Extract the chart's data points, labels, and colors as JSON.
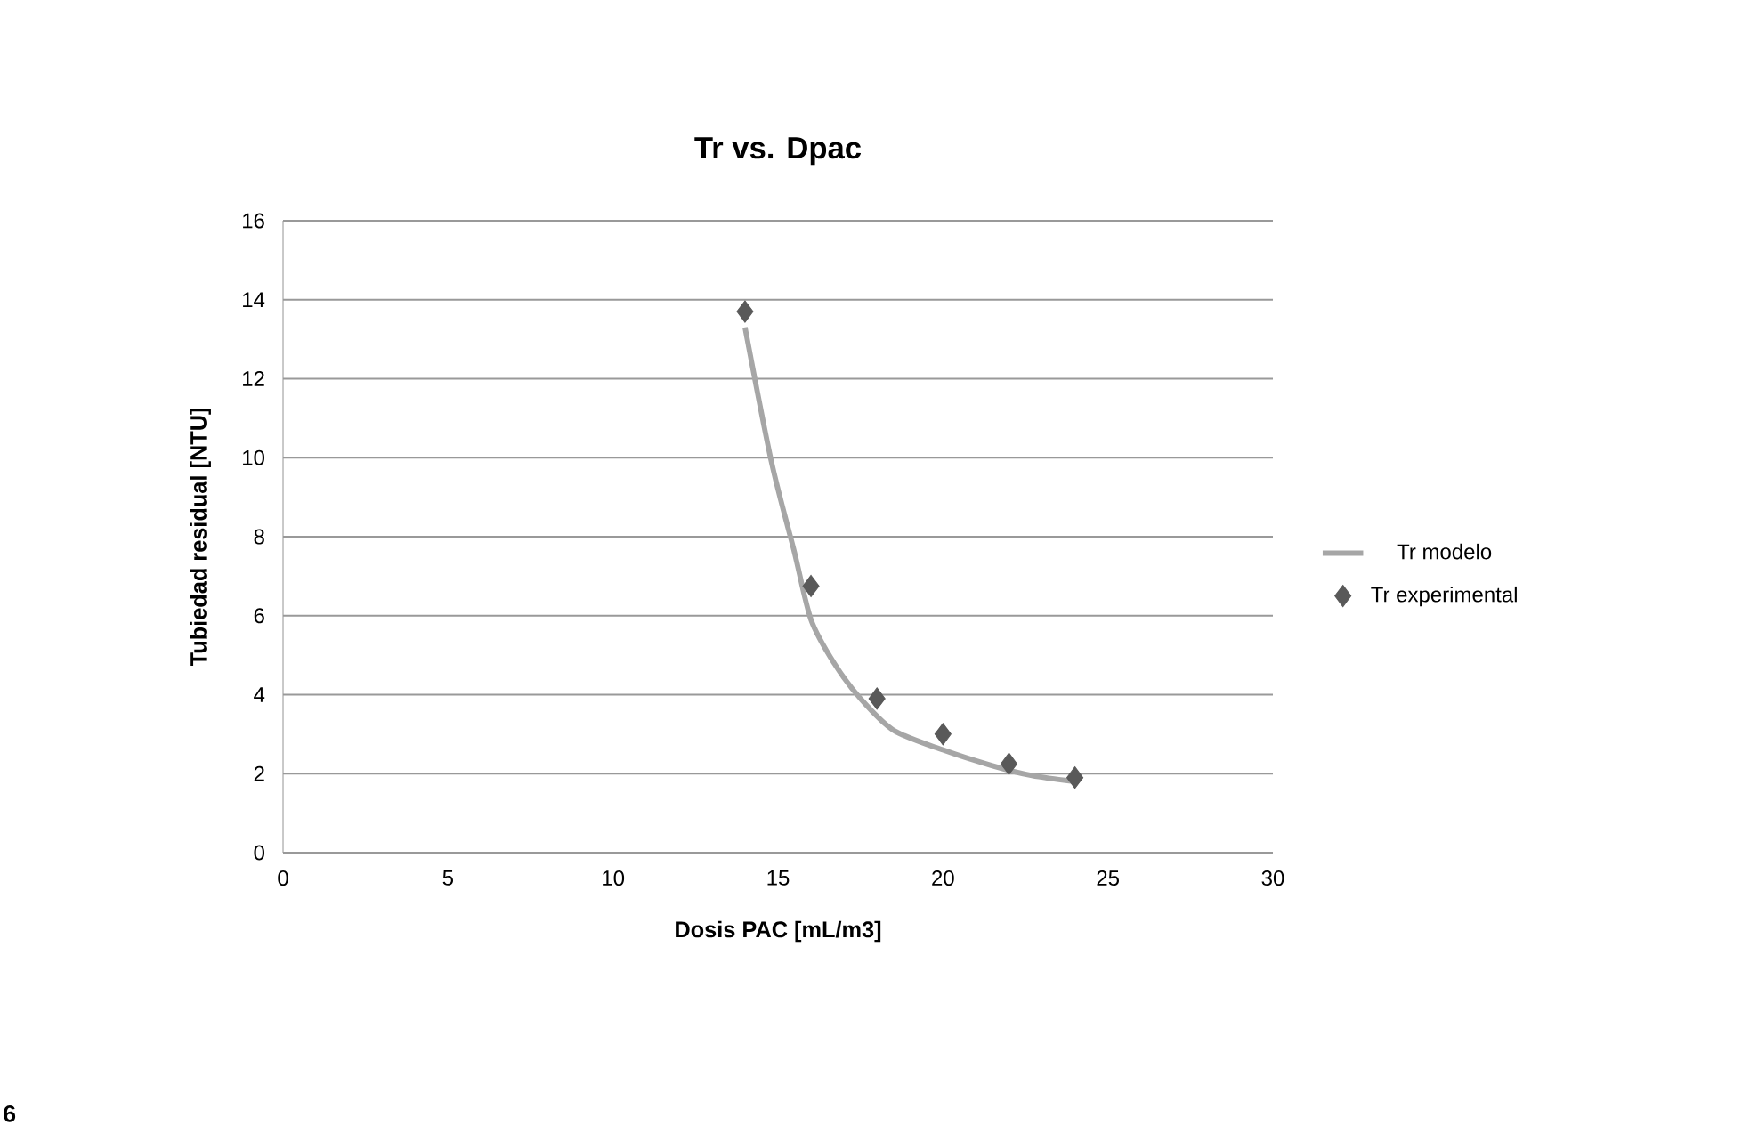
{
  "chart_data": {
    "type": "scatter",
    "title": "Tr vs. Dpac",
    "xlabel": "Dosis PAC [mL/m3]",
    "ylabel": "Tubiedad residual [NTU]",
    "xlim": [
      0,
      30
    ],
    "xticks": [
      0,
      5,
      10,
      15,
      20,
      25,
      30
    ],
    "ylim": [
      0,
      16
    ],
    "yticks": [
      0,
      2,
      4,
      6,
      8,
      10,
      12,
      14,
      16
    ],
    "grid": "y",
    "legend": "right",
    "series": [
      {
        "name": "Tr modelo",
        "type": "line",
        "color": "#a6a6a6",
        "marker": "none",
        "line_style": "solid",
        "x": [
          14,
          14.8,
          15.5,
          16,
          16.7,
          17.5,
          18.5,
          20,
          21.5,
          22.7,
          24
        ],
        "values": [
          13.3,
          9.9,
          7.6,
          5.9,
          4.8,
          3.9,
          3.1,
          2.6,
          2.2,
          1.95,
          1.8
        ]
      },
      {
        "name": "Tr experimental",
        "color": "#595959",
        "marker": "diamond",
        "x": [
          14,
          16,
          18,
          20,
          22,
          24
        ],
        "values": [
          13.7,
          6.75,
          3.9,
          3.0,
          2.25,
          1.9
        ]
      }
    ],
    "annotations": [
      "6"
    ]
  }
}
